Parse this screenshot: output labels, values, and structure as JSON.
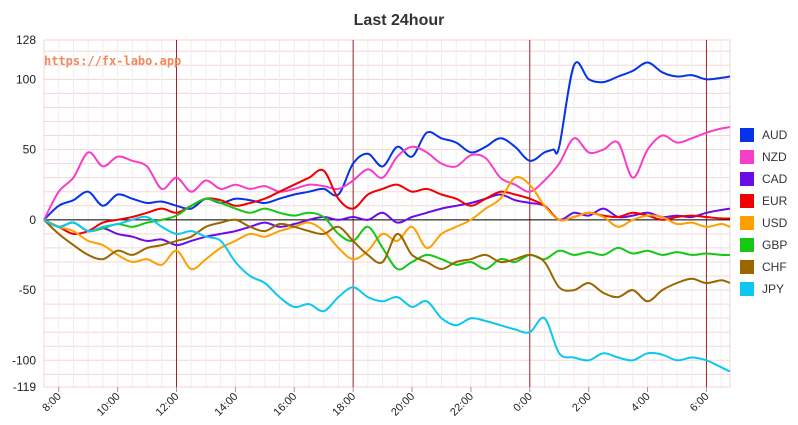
{
  "watermark": "https://fx-labo.app",
  "chart_data": {
    "type": "line",
    "title": "Last 24hour",
    "ylim": [
      -119,
      128
    ],
    "y_ticks": [
      "128",
      "100",
      "50",
      "0",
      "-50",
      "-100",
      "-119"
    ],
    "x_ticks": [
      "8:00",
      "10:00",
      "12:00",
      "14:00",
      "16:00",
      "18:00",
      "20:00",
      "22:00",
      "0:00",
      "2:00",
      "4:00",
      "6:00"
    ],
    "xlim": [
      7.5,
      30.8
    ],
    "vertical_markers": [
      12,
      18,
      24,
      30
    ],
    "grid": true,
    "legend_position": "right",
    "series": [
      {
        "name": "AUD",
        "color": "#0433e8",
        "x": [
          7.5,
          8,
          8.5,
          9,
          9.5,
          10,
          10.5,
          11,
          11.5,
          12,
          12.5,
          13,
          13.5,
          14,
          14.5,
          15,
          15.5,
          16,
          16.5,
          17,
          17.5,
          18,
          18.5,
          19,
          19.5,
          20,
          20.5,
          21,
          21.5,
          22,
          22.5,
          23,
          23.5,
          24,
          24.5,
          24.8,
          25,
          25.5,
          26,
          26.5,
          27,
          27.5,
          28,
          28.5,
          29,
          29.5,
          30,
          30.5,
          30.8
        ],
        "values": [
          0,
          10,
          14,
          20,
          10,
          18,
          15,
          12,
          13,
          10,
          8,
          15,
          12,
          15,
          14,
          12,
          15,
          18,
          20,
          22,
          18,
          40,
          47,
          38,
          52,
          45,
          62,
          58,
          55,
          48,
          52,
          58,
          52,
          42,
          48,
          50,
          52,
          110,
          100,
          98,
          102,
          106,
          112,
          105,
          102,
          103,
          100,
          101,
          102
        ]
      },
      {
        "name": "NZD",
        "color": "#f73ec8",
        "x": [
          7.5,
          8,
          8.5,
          9,
          9.5,
          10,
          10.5,
          11,
          11.5,
          12,
          12.5,
          13,
          13.5,
          14,
          14.5,
          15,
          15.5,
          16,
          16.5,
          17,
          17.5,
          18,
          18.5,
          19,
          19.5,
          20,
          20.5,
          21,
          21.5,
          22,
          22.5,
          23,
          23.5,
          24,
          24.5,
          25,
          25.5,
          26,
          26.5,
          27,
          27.5,
          28,
          28.5,
          29,
          29.5,
          30,
          30.5,
          30.8
        ],
        "values": [
          0,
          20,
          30,
          48,
          38,
          45,
          42,
          38,
          22,
          30,
          20,
          28,
          22,
          25,
          22,
          24,
          20,
          22,
          25,
          24,
          22,
          28,
          36,
          30,
          45,
          52,
          48,
          40,
          38,
          46,
          44,
          30,
          25,
          20,
          28,
          40,
          58,
          48,
          50,
          55,
          30,
          50,
          60,
          55,
          58,
          62,
          65,
          66
        ]
      },
      {
        "name": "CAD",
        "color": "#6a0ce8",
        "x": [
          7.5,
          8,
          8.5,
          9,
          9.5,
          10,
          10.5,
          11,
          11.5,
          12,
          12.5,
          13,
          13.5,
          14,
          14.5,
          15,
          15.5,
          16,
          16.5,
          17,
          17.5,
          18,
          18.5,
          19,
          19.5,
          20,
          20.5,
          21,
          21.5,
          22,
          22.5,
          23,
          23.5,
          24,
          24.5,
          25,
          25.5,
          26,
          26.5,
          27,
          27.5,
          28,
          28.5,
          29,
          29.5,
          30,
          30.5,
          30.8
        ],
        "values": [
          0,
          -5,
          -2,
          -8,
          -6,
          -10,
          -12,
          -15,
          -14,
          -18,
          -15,
          -12,
          -10,
          -8,
          -5,
          -2,
          -5,
          -3,
          0,
          2,
          0,
          2,
          0,
          5,
          -2,
          2,
          5,
          8,
          10,
          12,
          15,
          18,
          14,
          12,
          10,
          0,
          5,
          3,
          8,
          2,
          3,
          5,
          2,
          3,
          2,
          5,
          7,
          8
        ]
      },
      {
        "name": "EUR",
        "color": "#f00000",
        "x": [
          7.5,
          8,
          8.5,
          9,
          9.5,
          10,
          10.5,
          11,
          11.5,
          12,
          12.5,
          13,
          13.5,
          14,
          14.5,
          15,
          15.5,
          16,
          16.5,
          17,
          17.5,
          18,
          18.5,
          19,
          19.5,
          20,
          20.5,
          21,
          21.5,
          22,
          22.5,
          23,
          23.5,
          24,
          24.5,
          25,
          25.5,
          26,
          26.5,
          27,
          27.5,
          28,
          28.5,
          29,
          29.5,
          30,
          30.5,
          30.8
        ],
        "values": [
          0,
          -5,
          -10,
          -8,
          -2,
          0,
          2,
          5,
          8,
          5,
          10,
          15,
          14,
          10,
          12,
          15,
          20,
          25,
          30,
          35,
          15,
          8,
          18,
          22,
          25,
          20,
          22,
          18,
          15,
          10,
          15,
          20,
          18,
          15,
          10,
          0,
          2,
          5,
          3,
          2,
          5,
          3,
          0,
          2,
          3,
          2,
          1,
          1
        ]
      },
      {
        "name": "USD",
        "color": "#ffa000",
        "x": [
          7.5,
          8,
          8.5,
          9,
          9.5,
          10,
          10.5,
          11,
          11.5,
          12,
          12.5,
          13,
          13.5,
          14,
          14.5,
          15,
          15.5,
          16,
          16.5,
          17,
          17.5,
          18,
          18.5,
          19,
          19.5,
          20,
          20.5,
          21,
          21.5,
          22,
          22.5,
          23,
          23.5,
          24,
          24.5,
          25,
          25.5,
          26,
          26.5,
          27,
          27.5,
          28,
          28.5,
          29,
          29.5,
          30,
          30.5,
          30.8
        ],
        "values": [
          0,
          -5,
          -8,
          -15,
          -18,
          -25,
          -30,
          -28,
          -32,
          -22,
          -35,
          -28,
          -20,
          -15,
          -10,
          -12,
          -8,
          -5,
          -2,
          -8,
          -20,
          -28,
          -22,
          -10,
          -15,
          -5,
          -20,
          -10,
          -5,
          0,
          8,
          15,
          30,
          25,
          10,
          0,
          2,
          5,
          2,
          -5,
          0,
          3,
          2,
          -3,
          -2,
          -5,
          -3,
          -5
        ]
      },
      {
        "name": "GBP",
        "color": "#14c814",
        "x": [
          7.5,
          8,
          8.5,
          9,
          9.5,
          10,
          10.5,
          11,
          11.5,
          12,
          12.5,
          13,
          13.5,
          14,
          14.5,
          15,
          15.5,
          16,
          16.5,
          17,
          17.5,
          18,
          18.5,
          19,
          19.5,
          20,
          20.5,
          21,
          21.5,
          22,
          22.5,
          23,
          23.5,
          24,
          24.5,
          25,
          25.5,
          26,
          26.5,
          27,
          27.5,
          28,
          28.5,
          29,
          29.5,
          30,
          30.5,
          30.8
        ],
        "values": [
          0,
          -5,
          -2,
          -8,
          -6,
          -3,
          -5,
          -2,
          0,
          3,
          10,
          15,
          12,
          8,
          5,
          8,
          5,
          3,
          5,
          2,
          -10,
          -15,
          -5,
          -20,
          -35,
          -30,
          -25,
          -28,
          -32,
          -30,
          -35,
          -28,
          -30,
          -25,
          -28,
          -22,
          -25,
          -23,
          -25,
          -20,
          -24,
          -22,
          -25,
          -23,
          -25,
          -24,
          -25,
          -25
        ]
      },
      {
        "name": "CHF",
        "color": "#996600",
        "x": [
          7.5,
          8,
          8.5,
          9,
          9.5,
          10,
          10.5,
          11,
          11.5,
          12,
          12.5,
          13,
          13.5,
          14,
          14.5,
          15,
          15.5,
          16,
          16.5,
          17,
          17.5,
          18,
          18.5,
          19,
          19.5,
          20,
          20.5,
          21,
          21.5,
          22,
          22.5,
          23,
          23.5,
          24,
          24.5,
          25,
          25.5,
          26,
          26.5,
          27,
          27.5,
          28,
          28.5,
          29,
          29.5,
          30,
          30.5,
          30.8
        ],
        "values": [
          0,
          -10,
          -18,
          -25,
          -28,
          -22,
          -25,
          -20,
          -18,
          -15,
          -12,
          -5,
          -2,
          0,
          -5,
          -8,
          -3,
          -5,
          -8,
          -10,
          -5,
          -15,
          -25,
          -30,
          -10,
          -25,
          -30,
          -35,
          -30,
          -28,
          -25,
          -30,
          -28,
          -25,
          -30,
          -48,
          -50,
          -45,
          -52,
          -55,
          -50,
          -58,
          -50,
          -45,
          -42,
          -45,
          -43,
          -45
        ]
      },
      {
        "name": "JPY",
        "color": "#0cc8ee",
        "x": [
          7.5,
          8,
          8.5,
          9,
          9.5,
          10,
          10.5,
          11,
          11.5,
          12,
          12.5,
          13,
          13.5,
          14,
          14.5,
          15,
          15.5,
          16,
          16.5,
          17,
          17.5,
          18,
          18.5,
          19,
          19.5,
          20,
          20.5,
          21,
          21.5,
          22,
          22.5,
          23,
          23.5,
          24,
          24.5,
          25,
          25.5,
          26,
          26.5,
          27,
          27.5,
          28,
          28.5,
          29,
          29.5,
          30,
          30.5,
          30.8
        ],
        "values": [
          0,
          -5,
          -2,
          -8,
          -5,
          -3,
          0,
          2,
          -5,
          -10,
          -8,
          -12,
          -15,
          -30,
          -40,
          -45,
          -55,
          -62,
          -60,
          -65,
          -55,
          -48,
          -55,
          -58,
          -55,
          -62,
          -58,
          -70,
          -75,
          -70,
          -72,
          -75,
          -78,
          -80,
          -70,
          -95,
          -98,
          -100,
          -95,
          -98,
          -100,
          -95,
          -96,
          -100,
          -98,
          -100,
          -105,
          -108
        ]
      }
    ]
  }
}
